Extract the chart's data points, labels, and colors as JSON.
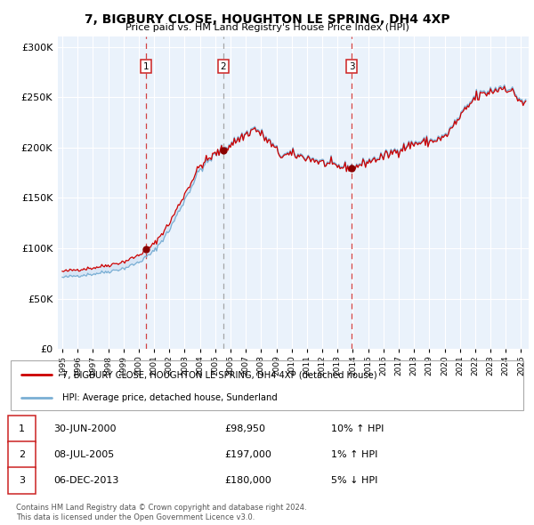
{
  "title": "7, BIGBURY CLOSE, HOUGHTON LE SPRING, DH4 4XP",
  "subtitle": "Price paid vs. HM Land Registry's House Price Index (HPI)",
  "legend_house": "7, BIGBURY CLOSE, HOUGHTON LE SPRING, DH4 4XP (detached house)",
  "legend_hpi": "HPI: Average price, detached house, Sunderland",
  "footnote1": "Contains HM Land Registry data © Crown copyright and database right 2024.",
  "footnote2": "This data is licensed under the Open Government Licence v3.0.",
  "sales": [
    {
      "label": "1",
      "date": "30-JUN-2000",
      "price": 98950,
      "price_str": "£98,950",
      "pct": "10%",
      "dir": "↑"
    },
    {
      "label": "2",
      "date": "08-JUL-2005",
      "price": 197000,
      "price_str": "£197,000",
      "pct": "1%",
      "dir": "↑"
    },
    {
      "label": "3",
      "date": "06-DEC-2013",
      "price": 180000,
      "price_str": "£180,000",
      "pct": "5%",
      "dir": "↓"
    }
  ],
  "sale_dates_decimal": [
    2000.496,
    2005.518,
    2013.926
  ],
  "sale_prices": [
    98950,
    197000,
    180000
  ],
  "sale_vline_styles": [
    "dashed_red",
    "dashed_gray",
    "dashed_red"
  ],
  "ylim": [
    0,
    310000
  ],
  "xlim_start": 1994.7,
  "xlim_end": 2025.5,
  "plot_bg": "#eaf2fb",
  "red_line_color": "#cc0000",
  "blue_line_color": "#7aafd4",
  "vline_red_color": "#cc2222",
  "vline_gray_color": "#999999",
  "box_edge_color": "#cc2222",
  "dot_color": "#880000",
  "grid_color": "#ffffff",
  "ytick_labels": [
    "£0",
    "£50K",
    "£100K",
    "£150K",
    "£200K",
    "£250K",
    "£300K"
  ],
  "ytick_values": [
    0,
    50000,
    100000,
    150000,
    200000,
    250000,
    300000
  ],
  "xticks": [
    1995,
    1996,
    1997,
    1998,
    1999,
    2000,
    2001,
    2002,
    2003,
    2004,
    2005,
    2006,
    2007,
    2008,
    2009,
    2010,
    2011,
    2012,
    2013,
    2014,
    2015,
    2016,
    2017,
    2018,
    2019,
    2020,
    2021,
    2022,
    2023,
    2024,
    2025
  ]
}
